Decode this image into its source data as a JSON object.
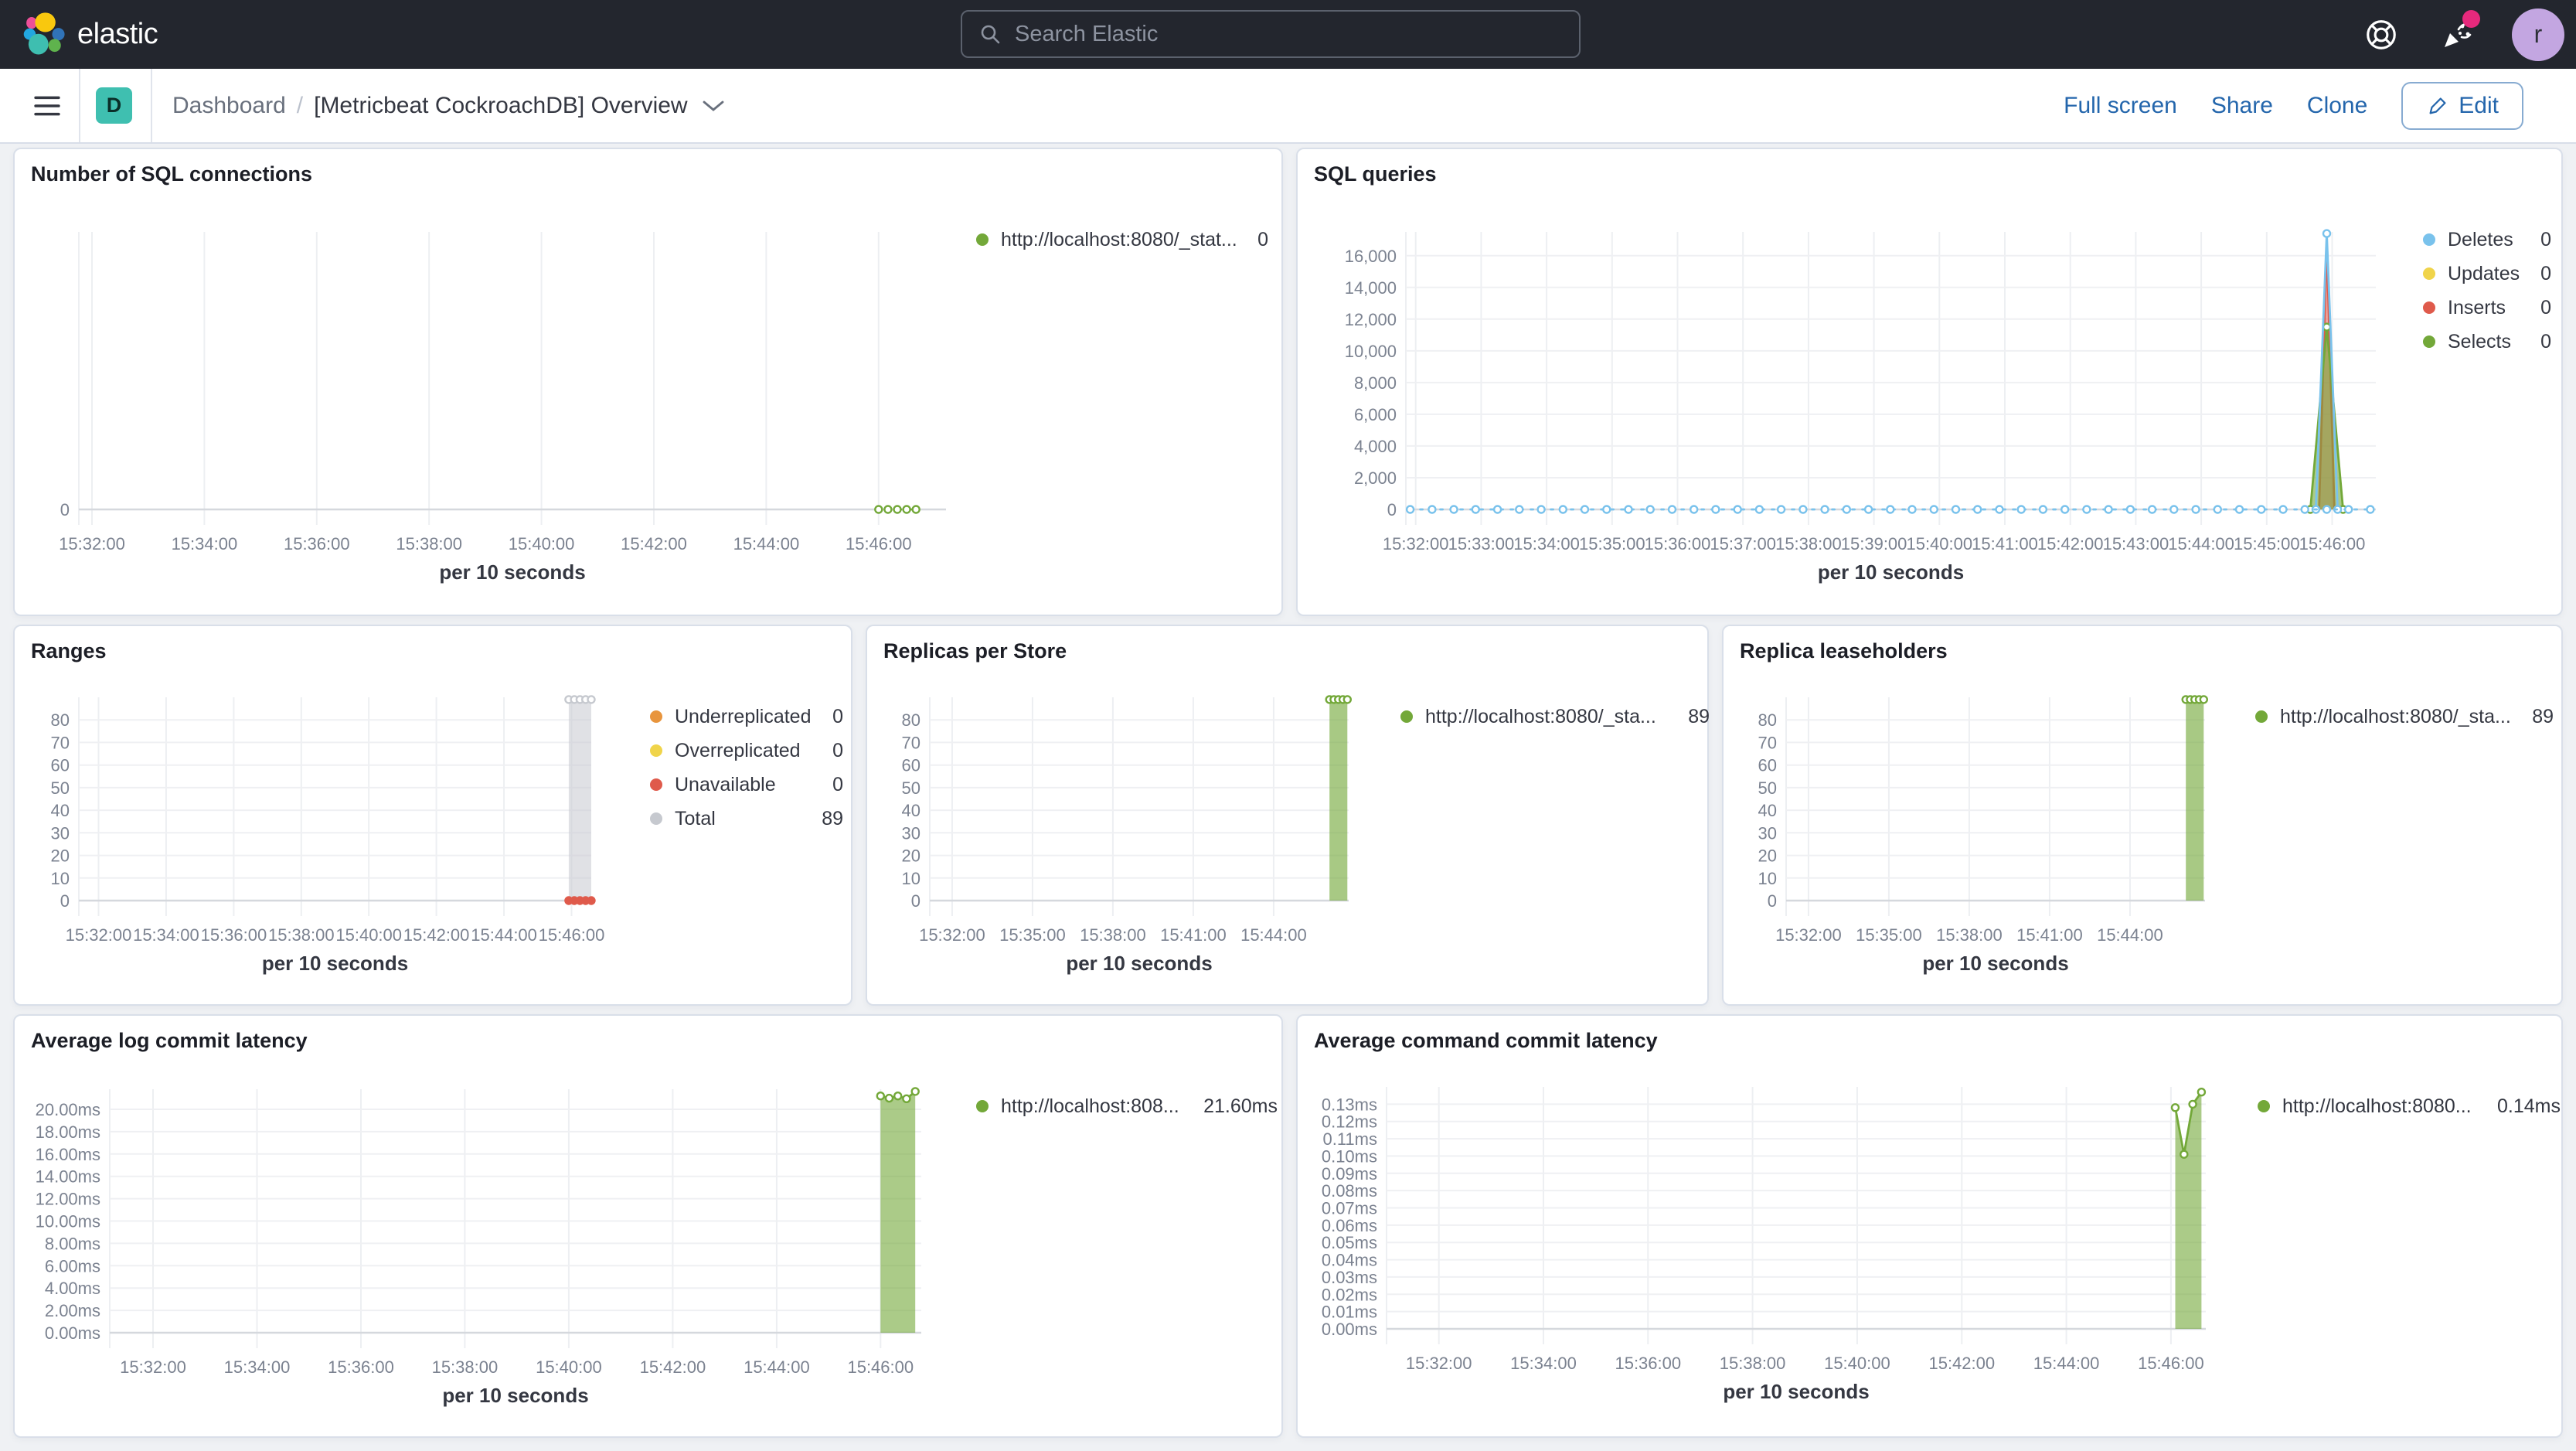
{
  "header": {
    "logo_text": "elastic",
    "search_placeholder": "Search Elastic",
    "user_initial": "r"
  },
  "toolbar": {
    "space_initial": "D",
    "breadcrumb_root": "Dashboard",
    "breadcrumb_separator": "/",
    "breadcrumb_current": "[Metricbeat CockroachDB] Overview",
    "actions": [
      "Full screen",
      "Share",
      "Clone"
    ],
    "edit_label": "Edit"
  },
  "colors": {
    "accent": "#2466ac",
    "header_bg": "#23262e",
    "page_bg": "#eff1f4",
    "panel_border": "#d9dfe9",
    "space_badge": "#3fbfb0",
    "avatar_bg": "#c3a6e1",
    "notification_dot": "#e6297c",
    "series_green": "#73a839",
    "series_blue": "#79c2ec",
    "series_yellow": "#f0d44a",
    "series_red": "#df5a4b",
    "series_orange": "#e8953d",
    "series_gray": "#c6c9cf"
  },
  "panels": [
    {
      "id": "sql_connections",
      "title": "Number of SQL connections",
      "legend": [
        {
          "label": "http://localhost:8080/_stat...",
          "value": "0",
          "color": "#73a839"
        }
      ],
      "chart": {
        "type": "line",
        "x_label": "per 10 seconds",
        "x_range": [
          "15:31:46",
          "15:47:12"
        ],
        "x_ticks": [
          "15:32:00",
          "15:34:00",
          "15:36:00",
          "15:38:00",
          "15:40:00",
          "15:42:00",
          "15:44:00",
          "15:46:00"
        ],
        "y_max": 10,
        "y_ticks": [
          {
            "v": 0,
            "label": "0"
          }
        ],
        "series": [
          {
            "name": "connections",
            "color": "#73a839",
            "dash": true,
            "markers": "open",
            "points": [
              [
                "15:46:00",
                0
              ],
              [
                "15:46:10",
                0
              ],
              [
                "15:46:20",
                0
              ],
              [
                "15:46:30",
                0
              ],
              [
                "15:46:40",
                0
              ]
            ]
          }
        ]
      }
    },
    {
      "id": "sql_queries",
      "title": "SQL queries",
      "legend": [
        {
          "label": "Deletes",
          "value": "0",
          "color": "#79c2ec"
        },
        {
          "label": "Updates",
          "value": "0",
          "color": "#f0d44a"
        },
        {
          "label": "Inserts",
          "value": "0",
          "color": "#df5a4b"
        },
        {
          "label": "Selects",
          "value": "0",
          "color": "#73a839"
        }
      ],
      "chart": {
        "type": "area",
        "x_label": "per 10 seconds",
        "x_range": [
          "15:31:51",
          "15:46:40"
        ],
        "x_ticks": [
          "15:32:00",
          "15:33:00",
          "15:34:00",
          "15:35:00",
          "15:36:00",
          "15:37:00",
          "15:38:00",
          "15:39:00",
          "15:40:00",
          "15:41:00",
          "15:42:00",
          "15:43:00",
          "15:44:00",
          "15:45:00",
          "15:46:00"
        ],
        "y_max": 17500,
        "y_ticks": [
          {
            "v": 0,
            "label": "0"
          },
          {
            "v": 2000,
            "label": "2,000"
          },
          {
            "v": 4000,
            "label": "4,000"
          },
          {
            "v": 6000,
            "label": "6,000"
          },
          {
            "v": 8000,
            "label": "8,000"
          },
          {
            "v": 10000,
            "label": "10,000"
          },
          {
            "v": 12000,
            "label": "12,000"
          },
          {
            "v": 14000,
            "label": "14,000"
          },
          {
            "v": 16000,
            "label": "16,000"
          }
        ],
        "series": [
          {
            "name": "inserts",
            "color": "#df5a4b",
            "area": true,
            "fill_opacity": 0.55,
            "points": [
              [
                "15:45:48",
                0
              ],
              [
                "15:45:55",
                16800
              ],
              [
                "15:46:02",
                0
              ]
            ]
          },
          {
            "name": "selects",
            "color": "#73a839",
            "area": true,
            "fill_opacity": 0.6,
            "markers": "open",
            "points": [
              [
                "15:45:40",
                0
              ],
              [
                "15:45:55",
                11500
              ],
              [
                "15:46:10",
                0
              ]
            ]
          },
          {
            "name": "deletes-spike",
            "color": "#79c2ec",
            "markers": "open",
            "points": [
              [
                "15:45:45",
                0
              ],
              [
                "15:45:55",
                17400
              ],
              [
                "15:46:05",
                0
              ]
            ]
          },
          {
            "name": "deletes-zero",
            "color": "#79c2ec",
            "dash": true,
            "markers": "step",
            "marker_step": 20,
            "points": [
              [
                "15:31:55",
                0
              ],
              [
                "15:46:35",
                0
              ]
            ]
          }
        ]
      }
    },
    {
      "id": "ranges",
      "title": "Ranges",
      "legend": [
        {
          "label": "Underreplicated",
          "value": "0",
          "color": "#e8953d"
        },
        {
          "label": "Overreplicated",
          "value": "0",
          "color": "#f0d44a"
        },
        {
          "label": "Unavailable",
          "value": "0",
          "color": "#df5a4b"
        },
        {
          "label": "Total",
          "value": "89",
          "color": "#c6c9cf"
        }
      ],
      "chart": {
        "type": "area",
        "x_label": "per 10 seconds",
        "x_range": [
          "15:31:25",
          "15:46:35"
        ],
        "x_ticks": [
          "15:32:00",
          "15:34:00",
          "15:36:00",
          "15:38:00",
          "15:40:00",
          "15:42:00",
          "15:44:00",
          "15:46:00"
        ],
        "y_max": 90,
        "y_ticks": [
          {
            "v": 0,
            "label": "0"
          },
          {
            "v": 10,
            "label": "10"
          },
          {
            "v": 20,
            "label": "20"
          },
          {
            "v": 30,
            "label": "30"
          },
          {
            "v": 40,
            "label": "40"
          },
          {
            "v": 50,
            "label": "50"
          },
          {
            "v": 60,
            "label": "60"
          },
          {
            "v": 70,
            "label": "70"
          },
          {
            "v": 80,
            "label": "80"
          }
        ],
        "series": [
          {
            "name": "total",
            "color": "#c6c9cf",
            "area": true,
            "fill_opacity": 0.55,
            "markers": "open",
            "points": [
              [
                "15:45:55",
                89
              ],
              [
                "15:46:05",
                89
              ],
              [
                "15:46:15",
                89
              ],
              [
                "15:46:25",
                89
              ],
              [
                "15:46:35",
                89
              ]
            ]
          },
          {
            "name": "unavailable",
            "color": "#df5a4b",
            "dash": true,
            "markers": "fill",
            "points": [
              [
                "15:45:55",
                0
              ],
              [
                "15:46:05",
                0
              ],
              [
                "15:46:15",
                0
              ],
              [
                "15:46:25",
                0
              ],
              [
                "15:46:35",
                0
              ]
            ]
          }
        ]
      }
    },
    {
      "id": "replicas_per_store",
      "title": "Replicas per Store",
      "legend": [
        {
          "label": "http://localhost:8080/_sta...",
          "value": "89",
          "color": "#73a839"
        }
      ],
      "chart": {
        "type": "area",
        "x_label": "per 10 seconds",
        "x_range": [
          "15:31:10",
          "15:46:48"
        ],
        "x_ticks": [
          "15:32:00",
          "15:35:00",
          "15:38:00",
          "15:41:00",
          "15:44:00"
        ],
        "y_max": 90,
        "y_ticks": [
          {
            "v": 0,
            "label": "0"
          },
          {
            "v": 10,
            "label": "10"
          },
          {
            "v": 20,
            "label": "20"
          },
          {
            "v": 30,
            "label": "30"
          },
          {
            "v": 40,
            "label": "40"
          },
          {
            "v": 50,
            "label": "50"
          },
          {
            "v": 60,
            "label": "60"
          },
          {
            "v": 70,
            "label": "70"
          },
          {
            "v": 80,
            "label": "80"
          }
        ],
        "series": [
          {
            "name": "replicas",
            "color": "#73a839",
            "area": true,
            "fill_opacity": 0.62,
            "markers": "open",
            "points": [
              [
                "15:46:05",
                89
              ],
              [
                "15:46:15",
                89
              ],
              [
                "15:46:25",
                89
              ],
              [
                "15:46:35",
                89
              ],
              [
                "15:46:45",
                89
              ]
            ]
          }
        ]
      }
    },
    {
      "id": "replica_leaseholders",
      "title": "Replica leaseholders",
      "legend": [
        {
          "label": "http://localhost:8080/_sta...",
          "value": "89",
          "color": "#73a839"
        }
      ],
      "chart": {
        "type": "area",
        "x_label": "per 10 seconds",
        "x_range": [
          "15:31:10",
          "15:46:48"
        ],
        "x_ticks": [
          "15:32:00",
          "15:35:00",
          "15:38:00",
          "15:41:00",
          "15:44:00"
        ],
        "y_max": 90,
        "y_ticks": [
          {
            "v": 0,
            "label": "0"
          },
          {
            "v": 10,
            "label": "10"
          },
          {
            "v": 20,
            "label": "20"
          },
          {
            "v": 30,
            "label": "30"
          },
          {
            "v": 40,
            "label": "40"
          },
          {
            "v": 50,
            "label": "50"
          },
          {
            "v": 60,
            "label": "60"
          },
          {
            "v": 70,
            "label": "70"
          },
          {
            "v": 80,
            "label": "80"
          }
        ],
        "series": [
          {
            "name": "leaseholders",
            "color": "#73a839",
            "area": true,
            "fill_opacity": 0.62,
            "markers": "open",
            "points": [
              [
                "15:46:05",
                89
              ],
              [
                "15:46:15",
                89
              ],
              [
                "15:46:25",
                89
              ],
              [
                "15:46:35",
                89
              ],
              [
                "15:46:45",
                89
              ]
            ]
          }
        ]
      }
    },
    {
      "id": "avg_log_commit_latency",
      "title": "Average log commit latency",
      "legend": [
        {
          "label": "http://localhost:808...",
          "value": "21.60ms",
          "color": "#73a839"
        }
      ],
      "chart": {
        "type": "area",
        "x_label": "per 10 seconds",
        "x_range": [
          "15:31:10",
          "15:46:47"
        ],
        "x_ticks": [
          "15:32:00",
          "15:34:00",
          "15:36:00",
          "15:38:00",
          "15:40:00",
          "15:42:00",
          "15:44:00",
          "15:46:00"
        ],
        "y_max": 21.8,
        "y_ticks": [
          {
            "v": 0,
            "label": "0.00ms"
          },
          {
            "v": 2,
            "label": "2.00ms"
          },
          {
            "v": 4,
            "label": "4.00ms"
          },
          {
            "v": 6,
            "label": "6.00ms"
          },
          {
            "v": 8,
            "label": "8.00ms"
          },
          {
            "v": 10,
            "label": "10.00ms"
          },
          {
            "v": 12,
            "label": "12.00ms"
          },
          {
            "v": 14,
            "label": "14.00ms"
          },
          {
            "v": 16,
            "label": "16.00ms"
          },
          {
            "v": 18,
            "label": "18.00ms"
          },
          {
            "v": 20,
            "label": "20.00ms"
          }
        ],
        "series": [
          {
            "name": "log-commit-latency",
            "color": "#73a839",
            "area": true,
            "fill_opacity": 0.6,
            "markers": "open",
            "points": [
              [
                "15:46:00",
                21.2
              ],
              [
                "15:46:10",
                21.0
              ],
              [
                "15:46:20",
                21.2
              ],
              [
                "15:46:30",
                20.95
              ],
              [
                "15:46:40",
                21.6
              ]
            ]
          }
        ]
      }
    },
    {
      "id": "avg_command_commit_latency",
      "title": "Average command commit latency",
      "legend": [
        {
          "label": "http://localhost:8080...",
          "value": "0.14ms",
          "color": "#73a839"
        }
      ],
      "chart": {
        "type": "area",
        "x_label": "per 10 seconds",
        "x_range": [
          "15:31:00",
          "15:46:40"
        ],
        "x_ticks": [
          "15:32:00",
          "15:34:00",
          "15:36:00",
          "15:38:00",
          "15:40:00",
          "15:42:00",
          "15:44:00",
          "15:46:00"
        ],
        "y_max": 0.14,
        "y_ticks": [
          {
            "v": 0,
            "label": "0.00ms"
          },
          {
            "v": 0.01,
            "label": "0.01ms"
          },
          {
            "v": 0.02,
            "label": "0.02ms"
          },
          {
            "v": 0.03,
            "label": "0.03ms"
          },
          {
            "v": 0.04,
            "label": "0.04ms"
          },
          {
            "v": 0.05,
            "label": "0.05ms"
          },
          {
            "v": 0.06,
            "label": "0.06ms"
          },
          {
            "v": 0.07,
            "label": "0.07ms"
          },
          {
            "v": 0.08,
            "label": "0.08ms"
          },
          {
            "v": 0.09,
            "label": "0.09ms"
          },
          {
            "v": 0.1,
            "label": "0.10ms"
          },
          {
            "v": 0.11,
            "label": "0.11ms"
          },
          {
            "v": 0.12,
            "label": "0.12ms"
          },
          {
            "v": 0.13,
            "label": "0.13ms"
          }
        ],
        "series": [
          {
            "name": "command-commit-latency",
            "color": "#73a839",
            "area": true,
            "fill_opacity": 0.6,
            "markers": "open",
            "points": [
              [
                "15:46:05",
                0.128
              ],
              [
                "15:46:15",
                0.101
              ],
              [
                "15:46:25",
                0.13
              ],
              [
                "15:46:35",
                0.137
              ]
            ]
          }
        ]
      }
    }
  ]
}
